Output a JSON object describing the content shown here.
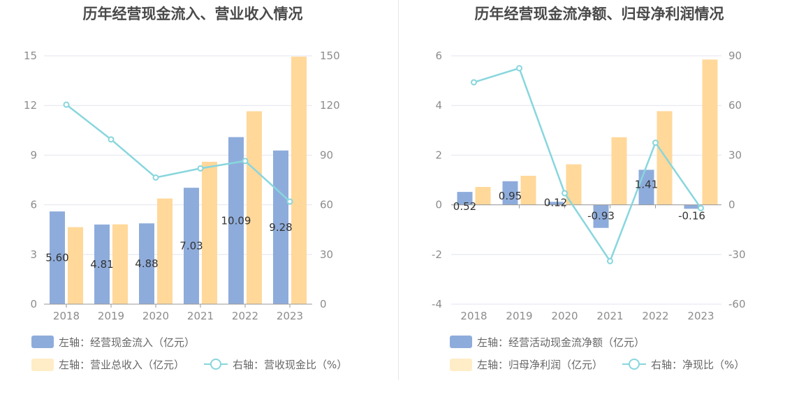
{
  "colors": {
    "bar_blue": "#8eacdb",
    "bar_orange": "#ffd89a",
    "line_cyan": "#88d6dd",
    "legend_orange": "#ffedc7",
    "axis": "#999999",
    "grid": "#e3e6f0"
  },
  "chart_data": [
    {
      "type": "bar",
      "title": "历年经营现金流入、营业收入情况",
      "categories": [
        "2018",
        "2019",
        "2020",
        "2021",
        "2022",
        "2023"
      ],
      "left_axis": {
        "ylim": [
          0,
          15
        ],
        "ticks": [
          "0",
          "3",
          "6",
          "9",
          "12",
          "15"
        ]
      },
      "right_axis": {
        "ylim": [
          0,
          150
        ],
        "ticks": [
          "0",
          "30",
          "60",
          "90",
          "120",
          "150"
        ]
      },
      "series": [
        {
          "name": "左轴：经营现金流入（亿元）",
          "axis": "left",
          "kind": "bar",
          "values": [
            5.6,
            4.81,
            4.88,
            7.03,
            10.09,
            9.28
          ],
          "labels": [
            "5.60",
            "4.81",
            "4.88",
            "7.03",
            "10.09",
            "9.28"
          ]
        },
        {
          "name": "左轴：营业总收入（亿元）",
          "axis": "left",
          "kind": "bar",
          "values": [
            4.65,
            4.82,
            6.38,
            8.6,
            11.65,
            14.95
          ]
        },
        {
          "name": "右轴：营收现金比（%）",
          "axis": "right",
          "kind": "line",
          "values": [
            120.5,
            99.5,
            76.5,
            82.0,
            86.5,
            62.0
          ]
        }
      ]
    },
    {
      "type": "bar",
      "title": "历年经营现金流净额、归母净利润情况",
      "categories": [
        "2018",
        "2019",
        "2020",
        "2021",
        "2022",
        "2023"
      ],
      "left_axis": {
        "ylim": [
          -4,
          6
        ],
        "ticks": [
          "-4",
          "-2",
          "0",
          "2",
          "4",
          "6"
        ]
      },
      "right_axis": {
        "ylim": [
          -60,
          90
        ],
        "ticks": [
          "-60",
          "-30",
          "0",
          "30",
          "60",
          "90"
        ]
      },
      "series": [
        {
          "name": "左轴：经营活动现金流净额（亿元）",
          "axis": "left",
          "kind": "bar",
          "values": [
            0.52,
            0.95,
            0.12,
            -0.93,
            1.41,
            -0.16
          ],
          "labels": [
            "0.52",
            "0.95",
            "0.12",
            "-0.93",
            "1.41",
            "-0.16"
          ]
        },
        {
          "name": "左轴：归母净利润（亿元）",
          "axis": "left",
          "kind": "bar",
          "values": [
            0.72,
            1.17,
            1.63,
            2.72,
            3.77,
            5.85
          ]
        },
        {
          "name": "右轴：净现比（%）",
          "axis": "right",
          "kind": "line",
          "values": [
            74.0,
            82.5,
            7.0,
            -34.0,
            37.5,
            -2.0
          ]
        }
      ]
    }
  ]
}
